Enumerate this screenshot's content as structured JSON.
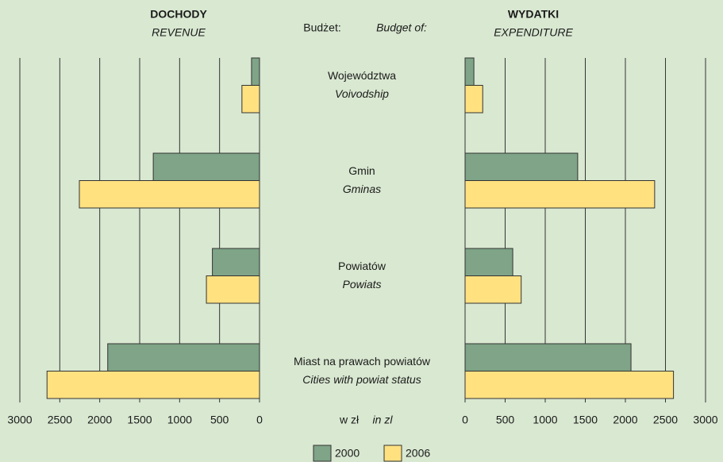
{
  "header": {
    "label": "Budżet:",
    "label_en": "Budget of:",
    "unit": "w zł",
    "unit_en": "in zl"
  },
  "chart_data": [
    {
      "type": "bar",
      "orientation": "horizontal",
      "reversed": true,
      "title": "DOCHODY",
      "subtitle": "REVENUE",
      "categories": [
        "Województwa",
        "Gmin",
        "Powiatów",
        "Miast na prawach powiatów"
      ],
      "categories_en": [
        "Voivodship",
        "Gminas",
        "Powiats",
        "Cities with powiat status"
      ],
      "xlim": [
        0,
        3000
      ],
      "xticks": [
        0,
        500,
        1000,
        1500,
        2000,
        2500,
        3000
      ],
      "grid": true,
      "series": [
        {
          "name": "2000",
          "color": "#7fa487",
          "values": [
            100,
            1330,
            590,
            1900
          ]
        },
        {
          "name": "2006",
          "color": "#ffe180",
          "values": [
            220,
            2255,
            665,
            2660
          ]
        }
      ]
    },
    {
      "type": "bar",
      "orientation": "horizontal",
      "reversed": false,
      "title": "WYDATKI",
      "subtitle": "EXPENDITURE",
      "xlim": [
        0,
        3000
      ],
      "xticks": [
        0,
        500,
        1000,
        1500,
        2000,
        2500,
        3000
      ],
      "grid": true,
      "series": [
        {
          "name": "2000",
          "color": "#7fa487",
          "values": [
            110,
            1405,
            595,
            2070
          ]
        },
        {
          "name": "2006",
          "color": "#ffe180",
          "values": [
            220,
            2365,
            700,
            2600
          ]
        }
      ]
    }
  ]
}
